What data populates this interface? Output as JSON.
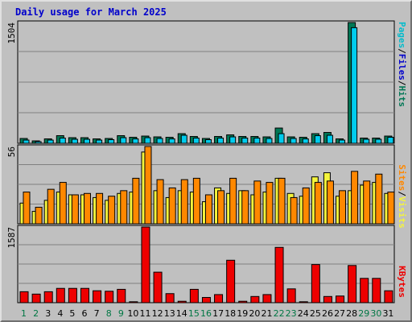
{
  "title": "Daily usage for March 2025",
  "colors": {
    "background": "#c0c0c0",
    "title": "#0000cc",
    "hits": "#007755",
    "files": "#00ccee",
    "pages": "#00bbcc",
    "visits": "#f4f43c",
    "sites": "#ff8800",
    "kbytes": "#ee0000",
    "weekday": "#000000",
    "weekend": "#007744"
  },
  "side_labels": {
    "top": [
      {
        "text": "Pages",
        "color": "#00bbcc"
      },
      {
        "text": "/",
        "color": "#000000"
      },
      {
        "text": "Files",
        "color": "#0000cc"
      },
      {
        "text": "/",
        "color": "#000000"
      },
      {
        "text": "Hits",
        "color": "#007755"
      }
    ],
    "middle": [
      {
        "text": "Sites",
        "color": "#ff8800"
      },
      {
        "text": "/",
        "color": "#000000"
      },
      {
        "text": "Visits",
        "color": "#f4f43c"
      }
    ],
    "bottom": [
      {
        "text": "KBytes",
        "color": "#ee0000"
      }
    ]
  },
  "chart_data": [
    {
      "type": "bar",
      "panel": "hits-files-pages",
      "ylim": [
        0,
        1504
      ],
      "ymax_label": "1504",
      "categories": [
        "1",
        "2",
        "3",
        "4",
        "5",
        "6",
        "7",
        "8",
        "9",
        "10",
        "11",
        "12",
        "13",
        "14",
        "15",
        "16",
        "17",
        "18",
        "19",
        "20",
        "21",
        "22",
        "23",
        "24",
        "25",
        "26",
        "27",
        "28",
        "29",
        "30",
        "31"
      ],
      "weekend": [
        1,
        2,
        8,
        9,
        15,
        16,
        22,
        23,
        29,
        30
      ],
      "series": [
        {
          "name": "Hits",
          "values": [
            60,
            30,
            55,
            95,
            70,
            70,
            55,
            60,
            95,
            75,
            90,
            80,
            75,
            120,
            85,
            60,
            85,
            105,
            85,
            85,
            80,
            190,
            80,
            75,
            120,
            135,
            55,
            1504,
            65,
            65,
            90
          ]
        },
        {
          "name": "Files",
          "values": [
            40,
            20,
            40,
            65,
            50,
            50,
            40,
            45,
            70,
            55,
            70,
            60,
            55,
            100,
            65,
            45,
            65,
            80,
            65,
            65,
            60,
            120,
            60,
            55,
            95,
            100,
            40,
            1440,
            50,
            50,
            75
          ]
        }
      ]
    },
    {
      "type": "bar",
      "panel": "visits-sites",
      "ylim": [
        0,
        56
      ],
      "ymax_label": "56",
      "categories": [
        "1",
        "2",
        "3",
        "4",
        "5",
        "6",
        "7",
        "8",
        "9",
        "10",
        "11",
        "12",
        "13",
        "14",
        "15",
        "16",
        "17",
        "18",
        "19",
        "20",
        "21",
        "22",
        "23",
        "24",
        "25",
        "26",
        "27",
        "28",
        "29",
        "30",
        "31"
      ],
      "weekend": [
        1,
        2,
        8,
        9,
        15,
        16,
        22,
        23,
        29,
        30
      ],
      "series": [
        {
          "name": "Visits",
          "values": [
            15,
            9,
            17,
            23,
            21,
            21,
            19,
            17,
            22,
            23,
            52,
            24,
            19,
            24,
            23,
            16,
            26,
            22,
            24,
            21,
            23,
            33,
            22,
            20,
            34,
            37,
            20,
            24,
            28,
            30,
            22
          ]
        },
        {
          "name": "Sites",
          "values": [
            23,
            12,
            25,
            30,
            21,
            22,
            22,
            20,
            24,
            33,
            56,
            32,
            26,
            32,
            33,
            21,
            24,
            33,
            24,
            31,
            30,
            33,
            19,
            26,
            30,
            31,
            24,
            38,
            31,
            36,
            23
          ]
        }
      ]
    },
    {
      "type": "bar",
      "panel": "kbytes",
      "ylim": [
        0,
        1587
      ],
      "ymax_label": "1587",
      "categories": [
        "1",
        "2",
        "3",
        "4",
        "5",
        "6",
        "7",
        "8",
        "9",
        "10",
        "11",
        "12",
        "13",
        "14",
        "15",
        "16",
        "17",
        "18",
        "19",
        "20",
        "21",
        "22",
        "23",
        "24",
        "25",
        "26",
        "27",
        "28",
        "29",
        "30",
        "31"
      ],
      "weekend": [
        1,
        2,
        8,
        9,
        15,
        16,
        22,
        23,
        29,
        30
      ],
      "series": [
        {
          "name": "KBytes",
          "values": [
            230,
            180,
            230,
            300,
            300,
            300,
            250,
            240,
            280,
            20,
            1587,
            640,
            190,
            30,
            280,
            110,
            170,
            890,
            30,
            130,
            170,
            1160,
            290,
            20,
            800,
            130,
            140,
            780,
            510,
            510,
            250
          ]
        }
      ]
    }
  ]
}
